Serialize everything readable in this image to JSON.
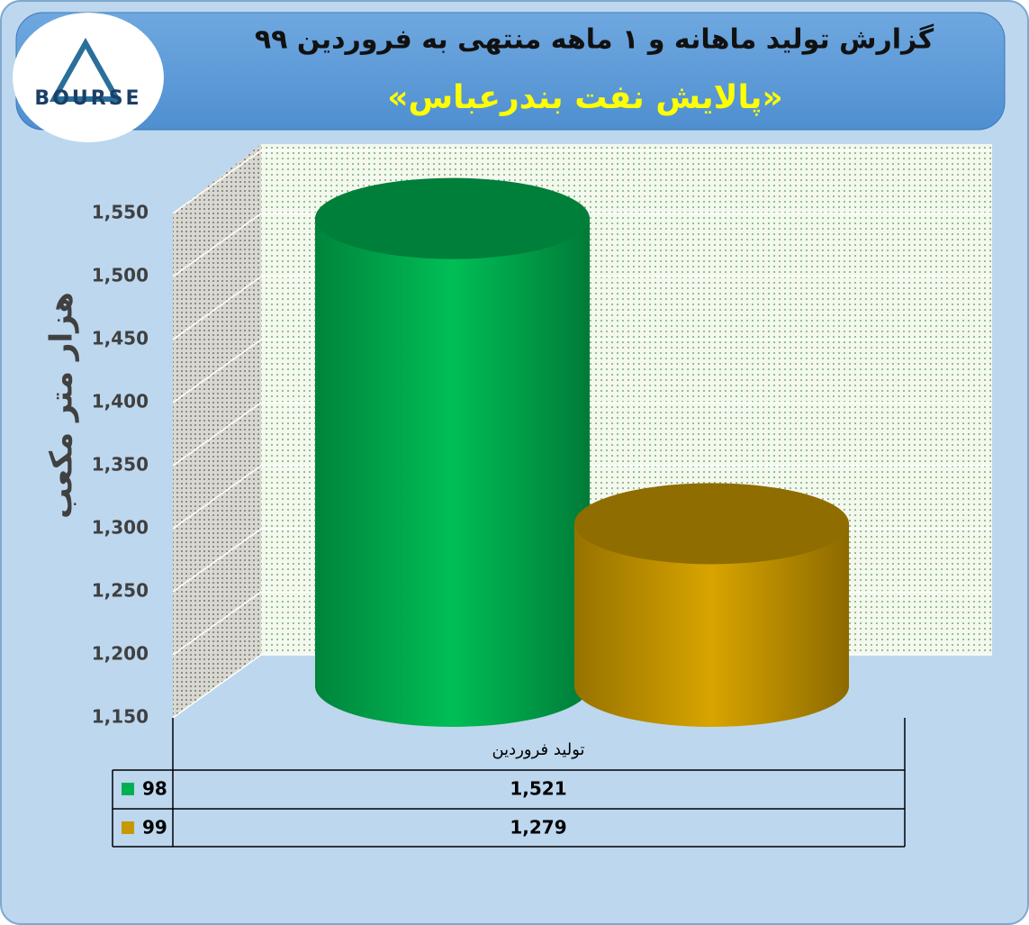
{
  "logo": "BOURSE",
  "chart_data": {
    "type": "cylinder-bar",
    "title": "گزارش تولید ماهانه و ۱ ماهه منتهی به فروردین ۹۹",
    "subtitle": "«پالایش نفت بندرعباس»",
    "y_label": "هزار متر مکعب",
    "categories": [
      "تولید فروردین"
    ],
    "series": [
      {
        "name": "98",
        "color": "#00b050",
        "values": [
          1521
        ],
        "value_labels": [
          "1,521"
        ]
      },
      {
        "name": "99",
        "color": "#c89800",
        "values": [
          1279
        ],
        "value_labels": [
          "1,279"
        ]
      }
    ],
    "ylim": [
      1150,
      1550
    ],
    "yticks": [
      {
        "value": 1150,
        "label": "1,150"
      },
      {
        "value": 1200,
        "label": "1,200"
      },
      {
        "value": 1250,
        "label": "1,250"
      },
      {
        "value": 1300,
        "label": "1,300"
      },
      {
        "value": 1350,
        "label": "1,350"
      },
      {
        "value": 1400,
        "label": "1,400"
      },
      {
        "value": 1450,
        "label": "1,450"
      },
      {
        "value": 1500,
        "label": "1,500"
      },
      {
        "value": 1550,
        "label": "1,550"
      }
    ],
    "grid": true
  }
}
